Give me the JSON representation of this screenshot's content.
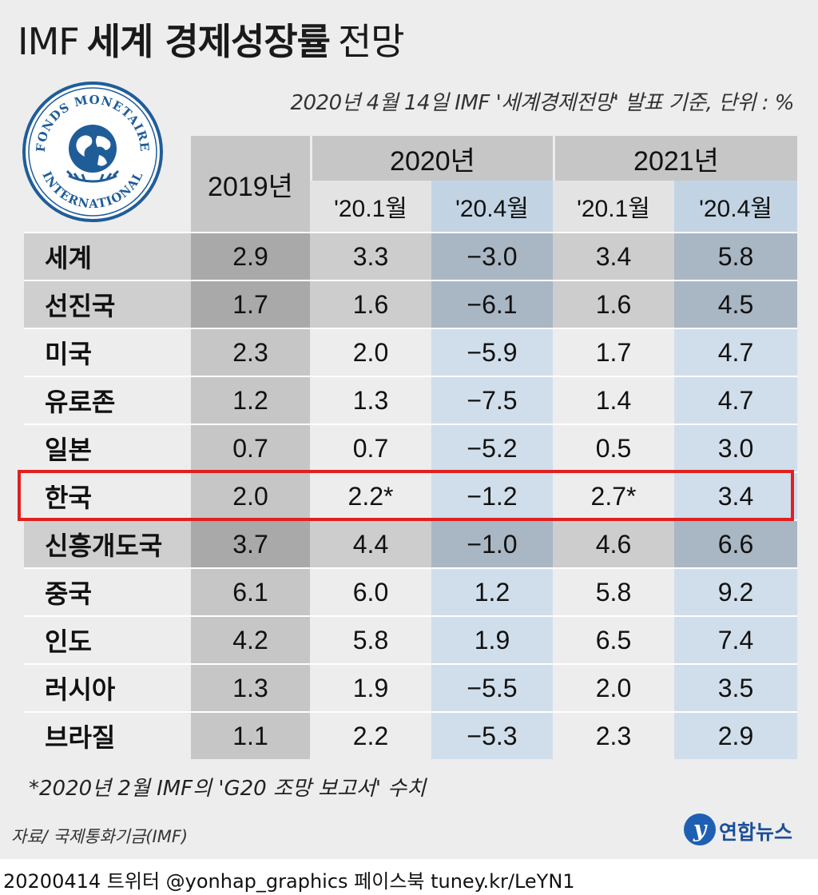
{
  "title_prefix": "IMF",
  "title_bold": "세계 경제성장률",
  "title_suffix": "전망",
  "subtitle": "2020년 4월 14일  IMF '세계경제전망' 발표 기준, 단위 : %",
  "logo": {
    "text_top": "FONDS MONETAIRE",
    "text_bottom": "INTERNATIONAL"
  },
  "colors": {
    "highlight_border": "#e02020",
    "group_row": "#a9b6c4",
    "forecast_column": "#d0deeb"
  },
  "chart_data": {
    "type": "table",
    "title": "IMF 세계 경제성장률 전망",
    "unit": "%",
    "columns": {
      "c2019": "2019년",
      "y2020": "2020년",
      "y2021": "2021년",
      "jan": "'20.1월",
      "apr": "'20.4월"
    },
    "rows": [
      {
        "label": "세계",
        "group": true,
        "v2019": "2.9",
        "v2020jan": "3.3",
        "v2020apr": "−3.0",
        "v2021jan": "3.4",
        "v2021apr": "5.8"
      },
      {
        "label": "선진국",
        "group": true,
        "v2019": "1.7",
        "v2020jan": "1.6",
        "v2020apr": "−6.1",
        "v2021jan": "1.6",
        "v2021apr": "4.5"
      },
      {
        "label": "미국",
        "group": false,
        "v2019": "2.3",
        "v2020jan": "2.0",
        "v2020apr": "−5.9",
        "v2021jan": "1.7",
        "v2021apr": "4.7"
      },
      {
        "label": "유로존",
        "group": false,
        "v2019": "1.2",
        "v2020jan": "1.3",
        "v2020apr": "−7.5",
        "v2021jan": "1.4",
        "v2021apr": "4.7"
      },
      {
        "label": "일본",
        "group": false,
        "v2019": "0.7",
        "v2020jan": "0.7",
        "v2020apr": "−5.2",
        "v2021jan": "0.5",
        "v2021apr": "3.0"
      },
      {
        "label": "한국",
        "group": false,
        "highlight": true,
        "v2019": "2.0",
        "v2020jan": "2.2*",
        "v2020apr": "−1.2",
        "v2021jan": "2.7*",
        "v2021apr": "3.4"
      },
      {
        "label": "신흥개도국",
        "group": true,
        "v2019": "3.7",
        "v2020jan": "4.4",
        "v2020apr": "−1.0",
        "v2021jan": "4.6",
        "v2021apr": "6.6"
      },
      {
        "label": "중국",
        "group": false,
        "v2019": "6.1",
        "v2020jan": "6.0",
        "v2020apr": "1.2",
        "v2021jan": "5.8",
        "v2021apr": "9.2"
      },
      {
        "label": "인도",
        "group": false,
        "v2019": "4.2",
        "v2020jan": "5.8",
        "v2020apr": "1.9",
        "v2021jan": "6.5",
        "v2021apr": "7.4"
      },
      {
        "label": "러시아",
        "group": false,
        "v2019": "1.3",
        "v2020jan": "1.9",
        "v2020apr": "−5.5",
        "v2021jan": "2.0",
        "v2021apr": "3.5"
      },
      {
        "label": "브라질",
        "group": false,
        "v2019": "1.1",
        "v2020jan": "2.2",
        "v2020apr": "−5.3",
        "v2021jan": "2.3",
        "v2021apr": "2.9"
      }
    ]
  },
  "footnote": "*2020년 2월 IMF의 'G20 조망 보고서' 수치",
  "source": "자료/ 국제통화기금(IMF)",
  "brand": {
    "icon": "yonhap-logo-icon",
    "name": "연합뉴스"
  },
  "footer": "20200414  트위터 @yonhap_graphics  페이스북 tuney.kr/LeYN1"
}
